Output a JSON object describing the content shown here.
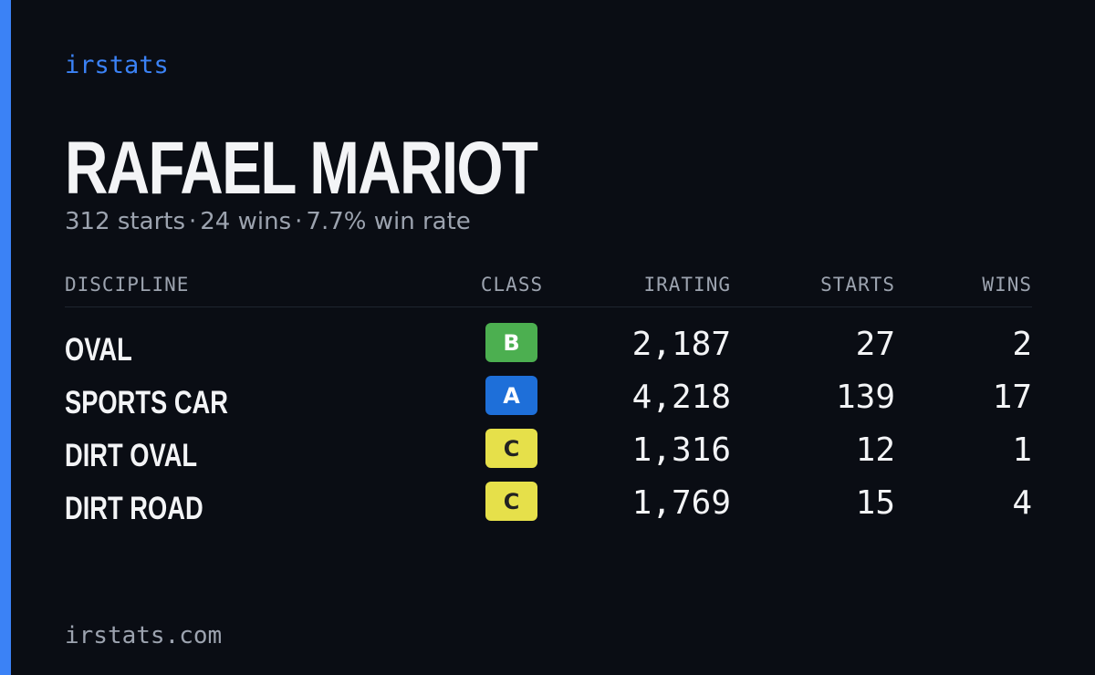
{
  "brand": "irstats",
  "driver": {
    "name": "RAFAEL MARIOT",
    "starts_text": "312 starts",
    "wins_text": "24 wins",
    "winrate_text": "7.7% win rate",
    "separator": "·"
  },
  "table": {
    "headers": {
      "discipline": "DISCIPLINE",
      "class": "CLASS",
      "irating": "IRATING",
      "starts": "STARTS",
      "wins": "WINS"
    },
    "rows": [
      {
        "discipline": "OVAL",
        "class": "B",
        "class_color": "#4caf50",
        "class_text_color": "#ffffff",
        "irating": "2,187",
        "starts": "27",
        "wins": "2"
      },
      {
        "discipline": "SPORTS CAR",
        "class": "A",
        "class_color": "#1e6fd9",
        "class_text_color": "#ffffff",
        "irating": "4,218",
        "starts": "139",
        "wins": "17"
      },
      {
        "discipline": "DIRT OVAL",
        "class": "C",
        "class_color": "#e6e04a",
        "class_text_color": "#222222",
        "irating": "1,316",
        "starts": "12",
        "wins": "1"
      },
      {
        "discipline": "DIRT ROAD",
        "class": "C",
        "class_color": "#e6e04a",
        "class_text_color": "#222222",
        "irating": "1,769",
        "starts": "15",
        "wins": "4"
      }
    ]
  },
  "footer": "irstats.com",
  "colors": {
    "background": "#0a0d14",
    "accent": "#3b82f6",
    "muted": "#9ca3af",
    "text": "#f3f4f6"
  }
}
